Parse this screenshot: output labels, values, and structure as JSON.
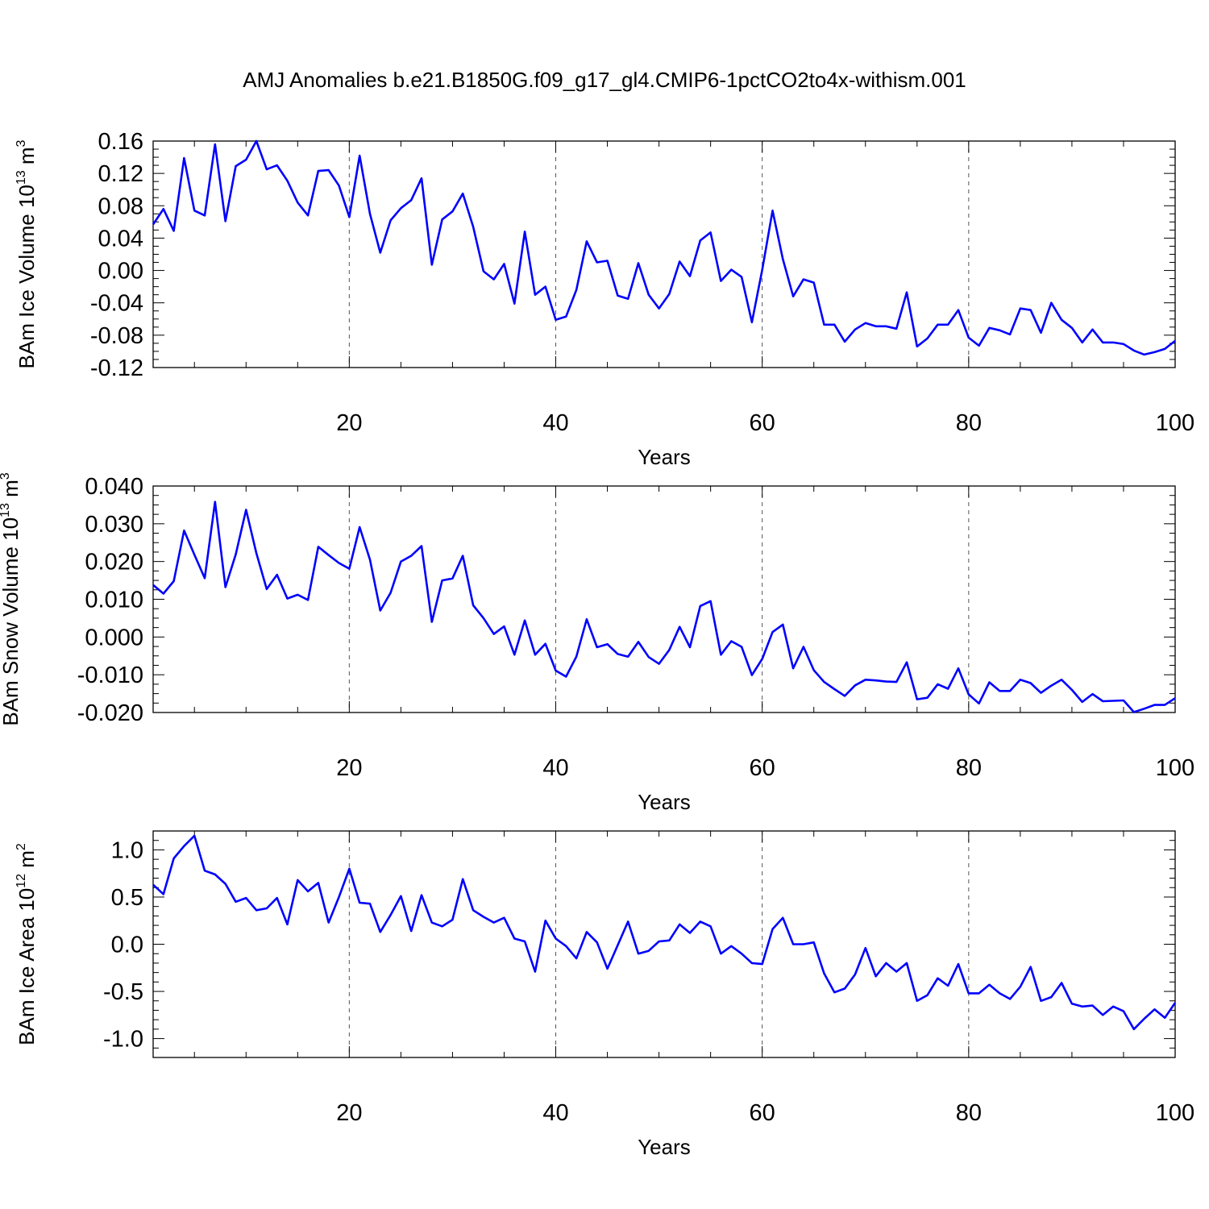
{
  "title": "AMJ Anomalies b.e21.B1850G.f09_g17_gl4.CMIP6-1pctCO2to4x-withism.001",
  "colors": {
    "line": "#0000ff",
    "axis": "#000000",
    "grid": "#555555"
  },
  "chart_data": [
    {
      "type": "line",
      "xlabel": "Years",
      "ylabel_text": "BAm Ice Volume 10",
      "ylabel_exp": "13",
      "ylabel_unit": " m",
      "ylabel_unit_exp": "3",
      "xlim": [
        1,
        100
      ],
      "ylim": [
        -0.12,
        0.16
      ],
      "xticks": [
        20,
        40,
        60,
        80,
        100
      ],
      "yticks": [
        0.16,
        0.12,
        0.08,
        0.04,
        0.0,
        -0.04,
        -0.08,
        -0.12
      ],
      "ytick_labels": [
        "0.16",
        "0.12",
        "0.08",
        "0.04",
        "0.00",
        "-0.04",
        "-0.08",
        "-0.12"
      ],
      "grid": "vertical dashed at major x ticks",
      "x": [
        1,
        2,
        3,
        4,
        5,
        6,
        7,
        8,
        9,
        10,
        11,
        12,
        13,
        14,
        15,
        16,
        17,
        18,
        19,
        20,
        21,
        22,
        23,
        24,
        25,
        26,
        27,
        28,
        29,
        30,
        31,
        32,
        33,
        34,
        35,
        36,
        37,
        38,
        39,
        40,
        41,
        42,
        43,
        44,
        45,
        46,
        47,
        48,
        49,
        50,
        51,
        52,
        53,
        54,
        55,
        56,
        57,
        58,
        59,
        60,
        61,
        62,
        63,
        64,
        65,
        66,
        67,
        68,
        69,
        70,
        71,
        72,
        73,
        74,
        75,
        76,
        77,
        78,
        79,
        80,
        81,
        82,
        83,
        84,
        85,
        86,
        87,
        88,
        89,
        90,
        91,
        92,
        93,
        94,
        95,
        96,
        97,
        98,
        99,
        100
      ],
      "values": [
        0.057,
        0.076,
        0.049,
        0.139,
        0.074,
        0.068,
        0.156,
        0.061,
        0.129,
        0.137,
        0.16,
        0.125,
        0.13,
        0.111,
        0.084,
        0.068,
        0.123,
        0.124,
        0.105,
        0.066,
        0.142,
        0.07,
        0.022,
        0.062,
        0.077,
        0.087,
        0.114,
        0.007,
        0.063,
        0.073,
        0.095,
        0.054,
        -0.001,
        -0.011,
        0.008,
        -0.041,
        0.048,
        -0.03,
        -0.02,
        -0.061,
        -0.057,
        -0.024,
        0.036,
        0.01,
        0.012,
        -0.031,
        -0.035,
        0.009,
        -0.03,
        -0.047,
        -0.029,
        0.011,
        -0.007,
        0.037,
        0.047,
        -0.013,
        0.001,
        -0.008,
        -0.064,
        0.001,
        0.074,
        0.014,
        -0.032,
        -0.011,
        -0.015,
        -0.067,
        -0.067,
        -0.088,
        -0.073,
        -0.065,
        -0.069,
        -0.069,
        -0.072,
        -0.027,
        -0.094,
        -0.084,
        -0.067,
        -0.067,
        -0.049,
        -0.083,
        -0.093,
        -0.071,
        -0.074,
        -0.079,
        -0.047,
        -0.049,
        -0.077,
        -0.04,
        -0.061,
        -0.071,
        -0.089,
        -0.073,
        -0.089,
        -0.089,
        -0.091,
        -0.099,
        -0.104,
        -0.101,
        -0.097,
        -0.087
      ]
    },
    {
      "type": "line",
      "xlabel": "Years",
      "ylabel_text": "BAm Snow Volume 10",
      "ylabel_exp": "13",
      "ylabel_unit": " m",
      "ylabel_unit_exp": "3",
      "xlim": [
        1,
        100
      ],
      "ylim": [
        -0.02,
        0.04
      ],
      "xticks": [
        20,
        40,
        60,
        80,
        100
      ],
      "yticks": [
        0.04,
        0.03,
        0.02,
        0.01,
        0.0,
        -0.01,
        -0.02
      ],
      "ytick_labels": [
        "0.040",
        "0.030",
        "0.020",
        "0.010",
        "0.000",
        "-0.010",
        "-0.020"
      ],
      "grid": "vertical dashed at major x ticks",
      "x": [
        1,
        2,
        3,
        4,
        5,
        6,
        7,
        8,
        9,
        10,
        11,
        12,
        13,
        14,
        15,
        16,
        17,
        18,
        19,
        20,
        21,
        22,
        23,
        24,
        25,
        26,
        27,
        28,
        29,
        30,
        31,
        32,
        33,
        34,
        35,
        36,
        37,
        38,
        39,
        40,
        41,
        42,
        43,
        44,
        45,
        46,
        47,
        48,
        49,
        50,
        51,
        52,
        53,
        54,
        55,
        56,
        57,
        58,
        59,
        60,
        61,
        62,
        63,
        64,
        65,
        66,
        67,
        68,
        69,
        70,
        71,
        72,
        73,
        74,
        75,
        76,
        77,
        78,
        79,
        80,
        81,
        82,
        83,
        84,
        85,
        86,
        87,
        88,
        89,
        90,
        91,
        92,
        93,
        94,
        95,
        96,
        97,
        98,
        99,
        100
      ],
      "values": [
        0.0138,
        0.0115,
        0.0148,
        0.0282,
        0.0218,
        0.0156,
        0.0358,
        0.0132,
        0.0219,
        0.0337,
        0.0222,
        0.0127,
        0.0165,
        0.0102,
        0.0112,
        0.0098,
        0.0239,
        0.0217,
        0.0196,
        0.0181,
        0.0291,
        0.0205,
        0.007,
        0.0117,
        0.02,
        0.0215,
        0.0241,
        0.004,
        0.015,
        0.0155,
        0.0215,
        0.0084,
        0.005,
        0.0008,
        0.0028,
        -0.0047,
        0.0044,
        -0.0047,
        -0.0018,
        -0.0089,
        -0.0105,
        -0.0052,
        0.0047,
        -0.0027,
        -0.0019,
        -0.0045,
        -0.0052,
        -0.0013,
        -0.0053,
        -0.0071,
        -0.0034,
        0.0027,
        -0.0027,
        0.0082,
        0.0095,
        -0.0047,
        -0.0011,
        -0.0026,
        -0.0101,
        -0.0058,
        0.0013,
        0.0033,
        -0.0083,
        -0.0026,
        -0.0088,
        -0.0119,
        -0.0138,
        -0.0156,
        -0.0128,
        -0.0113,
        -0.0115,
        -0.0118,
        -0.0119,
        -0.0067,
        -0.0165,
        -0.0161,
        -0.0125,
        -0.0137,
        -0.0083,
        -0.0152,
        -0.0176,
        -0.012,
        -0.0143,
        -0.0143,
        -0.0113,
        -0.0122,
        -0.0148,
        -0.0129,
        -0.0113,
        -0.014,
        -0.0172,
        -0.0151,
        -0.017,
        -0.0169,
        -0.0168,
        -0.0199,
        -0.019,
        -0.018,
        -0.018,
        -0.0162
      ]
    },
    {
      "type": "line",
      "xlabel": "Years",
      "ylabel_text": "BAm Ice Area 10",
      "ylabel_exp": "12",
      "ylabel_unit": " m",
      "ylabel_unit_exp": "2",
      "xlim": [
        1,
        100
      ],
      "ylim": [
        -1.2,
        1.2
      ],
      "xticks": [
        20,
        40,
        60,
        80,
        100
      ],
      "yticks": [
        1.0,
        0.5,
        0.0,
        -0.5,
        -1.0
      ],
      "ytick_labels": [
        "1.0",
        "0.5",
        "0.0",
        "-0.5",
        "-1.0"
      ],
      "grid": "vertical dashed at major x ticks",
      "x": [
        1,
        2,
        3,
        4,
        5,
        6,
        7,
        8,
        9,
        10,
        11,
        12,
        13,
        14,
        15,
        16,
        17,
        18,
        19,
        20,
        21,
        22,
        23,
        24,
        25,
        26,
        27,
        28,
        29,
        30,
        31,
        32,
        33,
        34,
        35,
        36,
        37,
        38,
        39,
        40,
        41,
        42,
        43,
        44,
        45,
        46,
        47,
        48,
        49,
        50,
        51,
        52,
        53,
        54,
        55,
        56,
        57,
        58,
        59,
        60,
        61,
        62,
        63,
        64,
        65,
        66,
        67,
        68,
        69,
        70,
        71,
        72,
        73,
        74,
        75,
        76,
        77,
        78,
        79,
        80,
        81,
        82,
        83,
        84,
        85,
        86,
        87,
        88,
        89,
        90,
        91,
        92,
        93,
        94,
        95,
        96,
        97,
        98,
        99,
        100
      ],
      "values": [
        0.63,
        0.53,
        0.91,
        1.04,
        1.15,
        0.78,
        0.74,
        0.64,
        0.45,
        0.49,
        0.36,
        0.38,
        0.49,
        0.21,
        0.68,
        0.56,
        0.65,
        0.23,
        0.5,
        0.8,
        0.44,
        0.43,
        0.13,
        0.31,
        0.51,
        0.14,
        0.52,
        0.23,
        0.19,
        0.26,
        0.69,
        0.36,
        0.29,
        0.23,
        0.28,
        0.06,
        0.03,
        -0.29,
        0.25,
        0.06,
        -0.02,
        -0.15,
        0.13,
        0.02,
        -0.26,
        -0.01,
        0.24,
        -0.1,
        -0.07,
        0.03,
        0.04,
        0.21,
        0.12,
        0.24,
        0.19,
        -0.1,
        -0.02,
        -0.1,
        -0.2,
        -0.21,
        0.16,
        0.28,
        0.0,
        0.0,
        0.02,
        -0.31,
        -0.51,
        -0.47,
        -0.32,
        -0.04,
        -0.34,
        -0.2,
        -0.29,
        -0.2,
        -0.6,
        -0.54,
        -0.36,
        -0.44,
        -0.21,
        -0.52,
        -0.52,
        -0.43,
        -0.52,
        -0.58,
        -0.45,
        -0.24,
        -0.6,
        -0.56,
        -0.41,
        -0.63,
        -0.66,
        -0.65,
        -0.75,
        -0.66,
        -0.71,
        -0.9,
        -0.79,
        -0.69,
        -0.78,
        -0.62
      ]
    }
  ]
}
